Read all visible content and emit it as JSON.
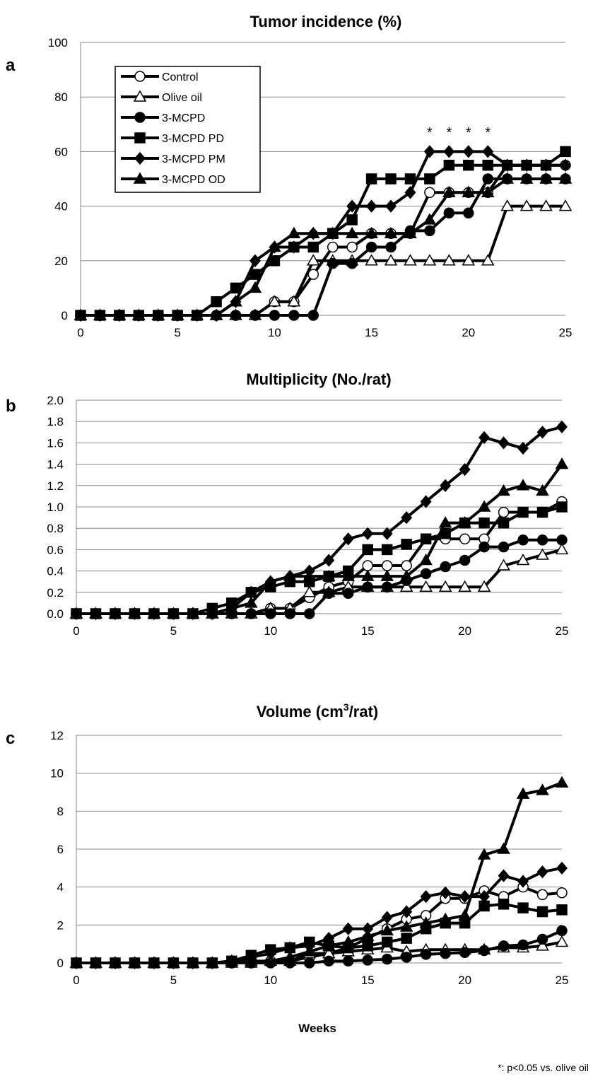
{
  "footnote": "*: p<0.05 vs. olive oil",
  "x_axis_label": "Weeks",
  "colors": {
    "line": "#000000",
    "open_marker_fill": "#ffffff",
    "axis": "#888888"
  },
  "chart_data": [
    {
      "panel": "a",
      "type": "line",
      "title": "Tumor incidence (%)",
      "ylim": [
        0,
        100
      ],
      "yticks": [
        "0",
        "20",
        "40",
        "60",
        "80",
        "100"
      ],
      "xlim": [
        0,
        25
      ],
      "xticks": [
        "0",
        "5",
        "10",
        "15",
        "20",
        "25"
      ],
      "grid": "horizontal",
      "legend": "top-left",
      "annotations": [
        {
          "text": "*",
          "x": 18
        },
        {
          "text": "*",
          "x": 19
        },
        {
          "text": "*",
          "x": 20
        },
        {
          "text": "*",
          "x": 21
        }
      ],
      "x": [
        0,
        1,
        2,
        3,
        4,
        5,
        6,
        7,
        8,
        9,
        10,
        11,
        12,
        13,
        14,
        15,
        16,
        17,
        18,
        19,
        20,
        21,
        22,
        23,
        24,
        25
      ],
      "series": [
        {
          "name": "Control",
          "marker": "circle-open",
          "values": [
            0,
            0,
            0,
            0,
            0,
            0,
            0,
            0,
            0,
            0,
            5,
            5,
            15,
            25,
            25,
            30,
            30,
            30,
            45,
            45,
            45,
            45,
            55,
            55,
            55,
            55
          ]
        },
        {
          "name": "Olive oil",
          "marker": "triangle-open",
          "values": [
            0,
            0,
            0,
            0,
            0,
            0,
            0,
            0,
            0,
            0,
            5,
            5,
            20,
            20,
            20,
            20,
            20,
            20,
            20,
            20,
            20,
            20,
            40,
            40,
            40,
            40
          ]
        },
        {
          "name": "3-MCPD",
          "marker": "circle-filled",
          "values": [
            0,
            0,
            0,
            0,
            0,
            0,
            0,
            0,
            0,
            0,
            0,
            0,
            0,
            19,
            19,
            25,
            25,
            31,
            31,
            37.5,
            37.5,
            50,
            50,
            50,
            50,
            50
          ]
        },
        {
          "name": "3-MCPD PD",
          "marker": "square-filled",
          "values": [
            0,
            0,
            0,
            0,
            0,
            0,
            0,
            5,
            10,
            15,
            20,
            25,
            25,
            30,
            35,
            50,
            50,
            50,
            50,
            55,
            55,
            55,
            55,
            55,
            55,
            60
          ]
        },
        {
          "name": "3-MCPD PM",
          "marker": "diamond-filled",
          "values": [
            0,
            0,
            0,
            0,
            0,
            0,
            0,
            0,
            5,
            20,
            25,
            25,
            30,
            30,
            40,
            40,
            40,
            45,
            60,
            60,
            60,
            60,
            55,
            55,
            55,
            55
          ]
        },
        {
          "name": "3-MCPD OD",
          "marker": "triangle-filled",
          "values": [
            0,
            0,
            0,
            0,
            0,
            0,
            0,
            0,
            5,
            10,
            25,
            30,
            30,
            30,
            30,
            30,
            30,
            30,
            35,
            45,
            45,
            45,
            50,
            50,
            50,
            50
          ]
        }
      ]
    },
    {
      "panel": "b",
      "type": "line",
      "title": "Multiplicity (No./rat)",
      "ylim": [
        0,
        2
      ],
      "yticks": [
        "0.0",
        "0.2",
        "0.4",
        "0.6",
        "0.8",
        "1.0",
        "1.2",
        "1.4",
        "1.6",
        "1.8",
        "2.0"
      ],
      "xlim": [
        0,
        25
      ],
      "xticks": [
        "0",
        "5",
        "10",
        "15",
        "20",
        "25"
      ],
      "grid": "horizontal",
      "x": [
        0,
        1,
        2,
        3,
        4,
        5,
        6,
        7,
        8,
        9,
        10,
        11,
        12,
        13,
        14,
        15,
        16,
        17,
        18,
        19,
        20,
        21,
        22,
        23,
        24,
        25
      ],
      "series": [
        {
          "name": "Control",
          "marker": "circle-open",
          "values": [
            0,
            0,
            0,
            0,
            0,
            0,
            0,
            0,
            0,
            0,
            0.05,
            0.05,
            0.15,
            0.25,
            0.3,
            0.45,
            0.45,
            0.45,
            0.7,
            0.7,
            0.7,
            0.7,
            0.95,
            0.95,
            0.95,
            1.05
          ]
        },
        {
          "name": "Olive oil",
          "marker": "triangle-open",
          "values": [
            0,
            0,
            0,
            0,
            0,
            0,
            0,
            0,
            0,
            0,
            0.05,
            0.05,
            0.2,
            0.2,
            0.25,
            0.25,
            0.25,
            0.25,
            0.25,
            0.25,
            0.25,
            0.25,
            0.45,
            0.5,
            0.55,
            0.6
          ]
        },
        {
          "name": "3-MCPD",
          "marker": "circle-filled",
          "values": [
            0,
            0,
            0,
            0,
            0,
            0,
            0,
            0,
            0,
            0,
            0,
            0,
            0,
            0.19,
            0.19,
            0.25,
            0.25,
            0.31,
            0.375,
            0.44,
            0.5,
            0.625,
            0.625,
            0.69,
            0.69,
            0.69
          ]
        },
        {
          "name": "3-MCPD PD",
          "marker": "square-filled",
          "values": [
            0,
            0,
            0,
            0,
            0,
            0,
            0,
            0.05,
            0.1,
            0.2,
            0.25,
            0.3,
            0.3,
            0.35,
            0.4,
            0.6,
            0.6,
            0.65,
            0.7,
            0.75,
            0.85,
            0.85,
            0.85,
            0.95,
            0.95,
            1.0
          ]
        },
        {
          "name": "3-MCPD PM",
          "marker": "diamond-filled",
          "values": [
            0,
            0,
            0,
            0,
            0,
            0,
            0,
            0,
            0.05,
            0.2,
            0.3,
            0.35,
            0.4,
            0.5,
            0.7,
            0.75,
            0.75,
            0.9,
            1.05,
            1.2,
            1.35,
            1.65,
            1.6,
            1.55,
            1.7,
            1.75
          ]
        },
        {
          "name": "3-MCPD OD",
          "marker": "triangle-filled",
          "values": [
            0,
            0,
            0,
            0,
            0,
            0,
            0,
            0,
            0.05,
            0.1,
            0.3,
            0.35,
            0.35,
            0.35,
            0.35,
            0.35,
            0.35,
            0.35,
            0.5,
            0.85,
            0.85,
            1.0,
            1.15,
            1.2,
            1.15,
            1.4
          ]
        }
      ]
    },
    {
      "panel": "c",
      "type": "line",
      "title": "Volume (cm3/rat)",
      "ylim": [
        0,
        12
      ],
      "yticks": [
        "0",
        "2",
        "4",
        "6",
        "8",
        "10",
        "12"
      ],
      "xlim": [
        0,
        25
      ],
      "xticks": [
        "0",
        "5",
        "10",
        "15",
        "20",
        "25"
      ],
      "grid": "horizontal",
      "xlabel": "Weeks",
      "x": [
        0,
        1,
        2,
        3,
        4,
        5,
        6,
        7,
        8,
        9,
        10,
        11,
        12,
        13,
        14,
        15,
        16,
        17,
        18,
        19,
        20,
        21,
        22,
        23,
        24,
        25
      ],
      "series": [
        {
          "name": "Control",
          "marker": "circle-open",
          "values": [
            0,
            0,
            0,
            0,
            0,
            0,
            0,
            0,
            0,
            0,
            0.1,
            0.1,
            0.3,
            0.5,
            0.8,
            1.3,
            1.8,
            2.3,
            2.5,
            3.4,
            3.4,
            3.8,
            3.5,
            4.0,
            3.6,
            3.7
          ]
        },
        {
          "name": "Olive oil",
          "marker": "triangle-open",
          "values": [
            0,
            0,
            0,
            0,
            0,
            0,
            0,
            0,
            0,
            0,
            0.1,
            0.1,
            0.5,
            0.5,
            0.6,
            0.7,
            0.8,
            0.6,
            0.7,
            0.7,
            0.7,
            0.7,
            0.8,
            0.8,
            0.9,
            1.1
          ]
        },
        {
          "name": "3-MCPD",
          "marker": "circle-filled",
          "values": [
            0,
            0,
            0,
            0,
            0,
            0,
            0,
            0,
            0,
            0,
            0,
            0,
            0,
            0.1,
            0.1,
            0.15,
            0.2,
            0.3,
            0.45,
            0.5,
            0.55,
            0.65,
            0.9,
            0.95,
            1.25,
            1.7
          ]
        },
        {
          "name": "3-MCPD PD",
          "marker": "square-filled",
          "values": [
            0,
            0,
            0,
            0,
            0,
            0,
            0,
            0,
            0.1,
            0.4,
            0.7,
            0.8,
            1.1,
            0.9,
            0.8,
            0.9,
            1.1,
            1.3,
            1.8,
            2.1,
            2.1,
            3.0,
            3.1,
            2.9,
            2.7,
            2.8
          ]
        },
        {
          "name": "3-MCPD PM",
          "marker": "diamond-filled",
          "values": [
            0,
            0,
            0,
            0,
            0,
            0,
            0,
            0,
            0.1,
            0.3,
            0.5,
            0.8,
            0.9,
            1.3,
            1.8,
            1.8,
            2.4,
            2.7,
            3.5,
            3.7,
            3.5,
            3.5,
            4.6,
            4.3,
            4.8,
            5.0
          ]
        },
        {
          "name": "3-MCPD OD",
          "marker": "triangle-filled",
          "values": [
            0,
            0,
            0,
            0,
            0,
            0,
            0,
            0,
            0.1,
            0.1,
            0.1,
            0.3,
            0.6,
            0.9,
            1.1,
            1.4,
            1.7,
            1.9,
            2.1,
            2.3,
            2.5,
            5.7,
            6.0,
            8.9,
            9.1,
            9.5
          ]
        }
      ]
    }
  ]
}
